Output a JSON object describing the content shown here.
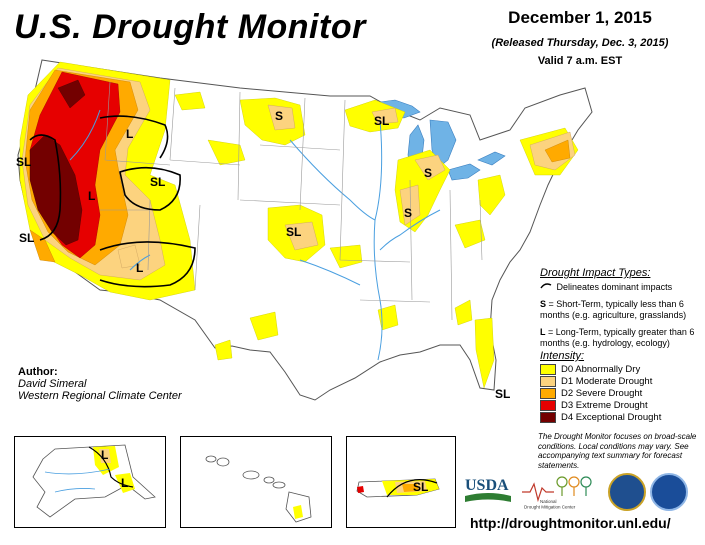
{
  "header": {
    "title": "U.S. Drought Monitor",
    "date": "December 1, 2015",
    "released": "(Released Thursday, Dec. 3, 2015)",
    "valid": "Valid 7 a.m. EST"
  },
  "map_labels": {
    "s": "S",
    "l": "L",
    "sl": "SL"
  },
  "impact_legend": {
    "heading": "Drought Impact Types:",
    "delineates": "Delineates dominant impacts",
    "short_term_key": "S",
    "short_term": "= Short-Term, typically less than 6 months (e.g. agriculture, grasslands)",
    "long_term_key": "L",
    "long_term": "= Long-Term, typically greater than 6 months (e.g. hydrology, ecology)"
  },
  "intensity_legend": {
    "heading": "Intensity:",
    "categories": [
      {
        "label": "D0 Abnormally Dry",
        "color": "#ffff00"
      },
      {
        "label": "D1 Moderate Drought",
        "color": "#fcd37f"
      },
      {
        "label": "D2 Severe Drought",
        "color": "#ffaa00"
      },
      {
        "label": "D3 Extreme Drought",
        "color": "#e60000"
      },
      {
        "label": "D4 Exceptional Drought",
        "color": "#730000"
      }
    ]
  },
  "author": {
    "heading": "Author:",
    "name": "David Simeral",
    "org": "Western Regional Climate Center"
  },
  "note": "The Drought Monitor focuses on broad-scale conditions. Local conditions may vary. See accompanying text summary for forecast statements.",
  "logos": {
    "usda": "USDA",
    "ndmc_line1": "National",
    "ndmc_line2": "Drought Mitigation Center"
  },
  "url": "http://droughtmonitor.unl.edu/",
  "colors": {
    "water": "#6fb3e6",
    "river": "#4a9fe0",
    "border": "#9a9a9a"
  }
}
